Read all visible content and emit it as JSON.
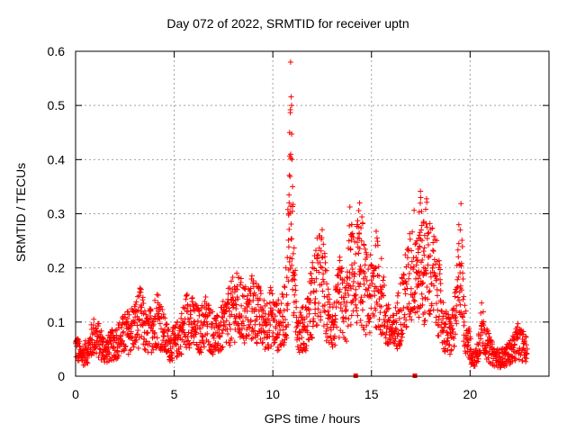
{
  "chart_data": {
    "type": "scatter",
    "title": "Day 072 of 2022, SRMTID for receiver uptn",
    "xlabel": "GPS time / hours",
    "ylabel": "SRMTID / TECUs",
    "xlim": [
      0,
      24
    ],
    "ylim": [
      0,
      0.6
    ],
    "xticks": [
      0,
      5,
      10,
      15,
      20
    ],
    "yticks": [
      0,
      0.1,
      0.2,
      0.3,
      0.4,
      0.5,
      0.6
    ],
    "xtick_labels": [
      "0",
      "5",
      "10",
      "15",
      "20"
    ],
    "ytick_labels": [
      "0",
      "0.1",
      "0.2",
      "0.3",
      "0.4",
      "0.5",
      "0.6"
    ],
    "grid": true,
    "marker": "+",
    "color": "#ff0000",
    "series": [
      {
        "name": "SRMTID",
        "envelope": [
          {
            "x": 0.0,
            "y": 0.06
          },
          {
            "x": 0.3,
            "y": 0.04
          },
          {
            "x": 0.6,
            "y": 0.05
          },
          {
            "x": 0.9,
            "y": 0.08
          },
          {
            "x": 1.2,
            "y": 0.07
          },
          {
            "x": 1.5,
            "y": 0.05
          },
          {
            "x": 1.8,
            "y": 0.06
          },
          {
            "x": 2.1,
            "y": 0.07
          },
          {
            "x": 2.4,
            "y": 0.08
          },
          {
            "x": 2.7,
            "y": 0.09
          },
          {
            "x": 3.0,
            "y": 0.1
          },
          {
            "x": 3.3,
            "y": 0.12
          },
          {
            "x": 3.6,
            "y": 0.08
          },
          {
            "x": 3.9,
            "y": 0.1
          },
          {
            "x": 4.2,
            "y": 0.12
          },
          {
            "x": 4.5,
            "y": 0.08
          },
          {
            "x": 4.8,
            "y": 0.06
          },
          {
            "x": 5.1,
            "y": 0.07
          },
          {
            "x": 5.4,
            "y": 0.09
          },
          {
            "x": 5.7,
            "y": 0.12
          },
          {
            "x": 6.0,
            "y": 0.1
          },
          {
            "x": 6.3,
            "y": 0.09
          },
          {
            "x": 6.6,
            "y": 0.11
          },
          {
            "x": 6.9,
            "y": 0.09
          },
          {
            "x": 7.2,
            "y": 0.08
          },
          {
            "x": 7.5,
            "y": 0.1
          },
          {
            "x": 7.8,
            "y": 0.12
          },
          {
            "x": 8.1,
            "y": 0.14
          },
          {
            "x": 8.4,
            "y": 0.13
          },
          {
            "x": 8.7,
            "y": 0.12
          },
          {
            "x": 9.0,
            "y": 0.14
          },
          {
            "x": 9.3,
            "y": 0.12
          },
          {
            "x": 9.6,
            "y": 0.1
          },
          {
            "x": 9.9,
            "y": 0.12
          },
          {
            "x": 10.2,
            "y": 0.1
          },
          {
            "x": 10.5,
            "y": 0.11
          },
          {
            "x": 10.7,
            "y": 0.15
          },
          {
            "x": 10.8,
            "y": 0.3
          },
          {
            "x": 10.85,
            "y": 0.45
          },
          {
            "x": 10.9,
            "y": 0.58
          },
          {
            "x": 10.95,
            "y": 0.5
          },
          {
            "x": 11.0,
            "y": 0.35
          },
          {
            "x": 11.1,
            "y": 0.15
          },
          {
            "x": 11.3,
            "y": 0.1
          },
          {
            "x": 11.6,
            "y": 0.09
          },
          {
            "x": 11.9,
            "y": 0.14
          },
          {
            "x": 12.2,
            "y": 0.18
          },
          {
            "x": 12.5,
            "y": 0.2
          },
          {
            "x": 12.8,
            "y": 0.12
          },
          {
            "x": 13.1,
            "y": 0.1
          },
          {
            "x": 13.4,
            "y": 0.16
          },
          {
            "x": 13.7,
            "y": 0.12
          },
          {
            "x": 14.0,
            "y": 0.28
          },
          {
            "x": 14.2,
            "y": 0.16
          },
          {
            "x": 14.4,
            "y": 0.32
          },
          {
            "x": 14.6,
            "y": 0.18
          },
          {
            "x": 14.9,
            "y": 0.15
          },
          {
            "x": 15.2,
            "y": 0.2
          },
          {
            "x": 15.5,
            "y": 0.16
          },
          {
            "x": 15.8,
            "y": 0.1
          },
          {
            "x": 16.1,
            "y": 0.08
          },
          {
            "x": 16.4,
            "y": 0.12
          },
          {
            "x": 16.7,
            "y": 0.16
          },
          {
            "x": 17.0,
            "y": 0.2
          },
          {
            "x": 17.3,
            "y": 0.25
          },
          {
            "x": 17.5,
            "y": 0.33
          },
          {
            "x": 17.7,
            "y": 0.26
          },
          {
            "x": 17.9,
            "y": 0.22
          },
          {
            "x": 18.1,
            "y": 0.2
          },
          {
            "x": 18.3,
            "y": 0.18
          },
          {
            "x": 18.5,
            "y": 0.14
          },
          {
            "x": 18.7,
            "y": 0.09
          },
          {
            "x": 19.0,
            "y": 0.08
          },
          {
            "x": 19.3,
            "y": 0.12
          },
          {
            "x": 19.5,
            "y": 0.27
          },
          {
            "x": 19.7,
            "y": 0.1
          },
          {
            "x": 19.9,
            "y": 0.08
          },
          {
            "x": 20.1,
            "y": 0.03
          },
          {
            "x": 20.3,
            "y": 0.04
          },
          {
            "x": 20.6,
            "y": 0.1
          },
          {
            "x": 20.9,
            "y": 0.06
          },
          {
            "x": 21.2,
            "y": 0.04
          },
          {
            "x": 21.5,
            "y": 0.035
          },
          {
            "x": 21.8,
            "y": 0.04
          },
          {
            "x": 22.1,
            "y": 0.05
          },
          {
            "x": 22.4,
            "y": 0.07
          },
          {
            "x": 22.7,
            "y": 0.06
          },
          {
            "x": 22.9,
            "y": 0.05
          }
        ]
      }
    ],
    "ground_markers": [
      {
        "x": 14.2,
        "y": 0.0
      },
      {
        "x": 17.2,
        "y": 0.0
      }
    ]
  }
}
